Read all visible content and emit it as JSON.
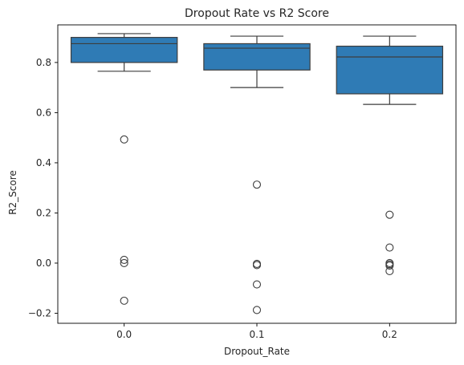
{
  "chart_data": {
    "type": "box",
    "title": "Dropout Rate vs R2 Score",
    "xlabel": "Dropout_Rate",
    "ylabel": "R2_Score",
    "ylim": [
      -0.24,
      0.95
    ],
    "yticks": [
      -0.2,
      0.0,
      0.2,
      0.4,
      0.6,
      0.8
    ],
    "ytick_labels": [
      "−0.2",
      "0.0",
      "0.2",
      "0.4",
      "0.6",
      "0.8"
    ],
    "categories": [
      "0.0",
      "0.1",
      "0.2"
    ],
    "grid": false,
    "box_color": "#2f7bb5",
    "line_color": "#3d3d3d",
    "boxes": [
      {
        "category": "0.0",
        "whisker_low": 0.765,
        "q1": 0.8,
        "median": 0.875,
        "q3": 0.9,
        "whisker_high": 0.915,
        "outliers": [
          0.493,
          0.013,
          0.0,
          -0.15
        ]
      },
      {
        "category": "0.1",
        "whisker_low": 0.7,
        "q1": 0.77,
        "median": 0.857,
        "q3": 0.875,
        "whisker_high": 0.905,
        "outliers": [
          0.313,
          -0.003,
          -0.008,
          -0.085,
          -0.187
        ]
      },
      {
        "category": "0.2",
        "whisker_low": 0.633,
        "q1": 0.675,
        "median": 0.822,
        "q3": 0.865,
        "whisker_high": 0.905,
        "outliers": [
          0.193,
          0.062,
          0.0,
          -0.005,
          -0.01,
          -0.032
        ]
      }
    ]
  }
}
